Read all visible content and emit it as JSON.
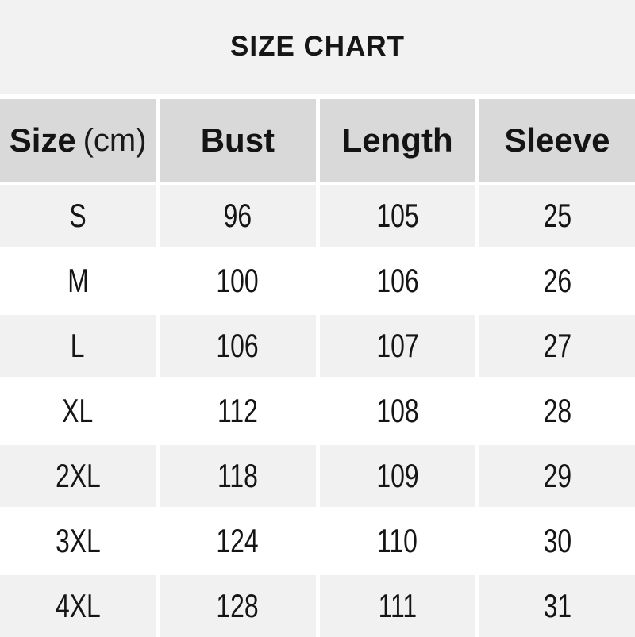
{
  "title": "SIZE CHART",
  "table": {
    "header": {
      "size_label": "Size",
      "size_unit": "(cm)",
      "bust": "Bust",
      "length": "Length",
      "sleeve": "Sleeve"
    },
    "rows": [
      {
        "size": "S",
        "bust": "96",
        "length": "105",
        "sleeve": "25"
      },
      {
        "size": "M",
        "bust": "100",
        "length": "106",
        "sleeve": "26"
      },
      {
        "size": "L",
        "bust": "106",
        "length": "107",
        "sleeve": "27"
      },
      {
        "size": "XL",
        "bust": "112",
        "length": "108",
        "sleeve": "28"
      },
      {
        "size": "2XL",
        "bust": "118",
        "length": "109",
        "sleeve": "29"
      },
      {
        "size": "3XL",
        "bust": "124",
        "length": "110",
        "sleeve": "30"
      },
      {
        "size": "4XL",
        "bust": "128",
        "length": "111",
        "sleeve": "31"
      }
    ]
  },
  "colors": {
    "banner_bg": "#f2f2f2",
    "header_cell_bg": "#d9d9d9",
    "row_alt_bg": "#f1f1f1",
    "row_bg": "#ffffff",
    "gap_color": "#ffffff",
    "text": "#161616"
  },
  "chart_data": {
    "type": "table",
    "title": "SIZE CHART",
    "columns": [
      "Size (cm)",
      "Bust",
      "Length",
      "Sleeve"
    ],
    "rows": [
      [
        "S",
        96,
        105,
        25
      ],
      [
        "M",
        100,
        106,
        26
      ],
      [
        "L",
        106,
        107,
        27
      ],
      [
        "XL",
        112,
        108,
        28
      ],
      [
        "2XL",
        118,
        109,
        29
      ],
      [
        "3XL",
        124,
        110,
        30
      ],
      [
        "4XL",
        128,
        111,
        31
      ]
    ]
  }
}
